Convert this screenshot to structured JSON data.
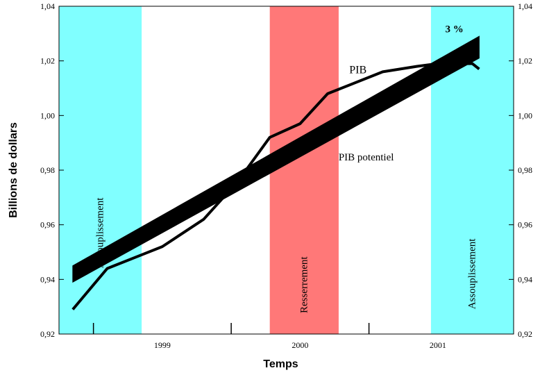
{
  "chart_data": {
    "type": "line",
    "title": "",
    "xlabel": "Temps",
    "ylabel": "Billions de dollars",
    "ylim": [
      0.92,
      1.04
    ],
    "xlim": [
      1998.25,
      2001.55
    ],
    "yticks": [
      "0,92",
      "0,94",
      "0,96",
      "0,98",
      "1,00",
      "1,02",
      "1,04"
    ],
    "ytick_values": [
      0.92,
      0.94,
      0.96,
      0.98,
      1.0,
      1.02,
      1.04
    ],
    "xticks": [
      "1999",
      "2000",
      "2001"
    ],
    "xtick_values": [
      1999.0,
      2000.0,
      2001.0
    ],
    "xtick_marks": [
      1998.5,
      1999.5,
      2000.5
    ],
    "grid": false,
    "bands": [
      {
        "label": "Assouplissement",
        "x0": 1998.25,
        "x1": 1998.85,
        "color": "#80ffff"
      },
      {
        "label": "Resserrement",
        "x0": 1999.78,
        "x1": 2000.28,
        "color": "#ff7878"
      },
      {
        "label": "Assouplissement",
        "x0": 2000.95,
        "x1": 2001.55,
        "color": "#80ffff"
      }
    ],
    "series": [
      {
        "name": "PIB",
        "color": "#000000",
        "x": [
          1998.35,
          1998.6,
          1998.85,
          1999.0,
          1999.3,
          1999.55,
          1999.78,
          2000.0,
          2000.2,
          2000.6,
          2000.85,
          2001.0,
          2001.1,
          2001.25,
          2001.3
        ],
        "y": [
          0.929,
          0.944,
          0.949,
          0.952,
          0.962,
          0.976,
          0.992,
          0.997,
          1.008,
          1.016,
          1.018,
          1.019,
          1.019,
          1.019,
          1.017
        ]
      },
      {
        "name": "PIB potentiel",
        "color": "#000000",
        "x": [
          1998.35,
          2001.3
        ],
        "y_low": [
          0.939,
          1.021
        ],
        "y_high": [
          0.945,
          1.029
        ]
      }
    ],
    "annotations": [
      "3 %"
    ]
  }
}
